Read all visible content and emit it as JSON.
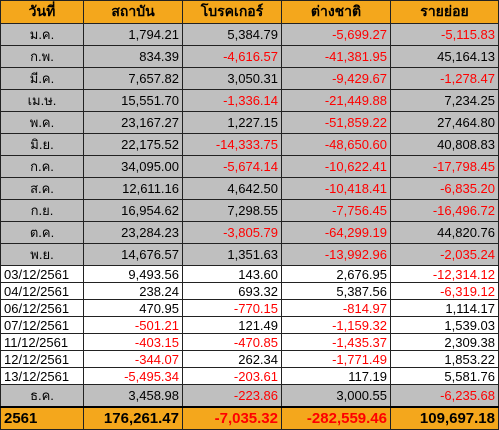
{
  "table": {
    "headers": [
      "วันที่",
      "สถาบัน",
      "โบรคเกอร์",
      "ต่างชาติ",
      "รายย่อย"
    ],
    "colors": {
      "header_bg": "#f4a71c",
      "month_row_bg": "#bfbfbf",
      "day_row_bg": "#ffffff",
      "negative_text": "#ff0000"
    },
    "rows": [
      {
        "type": "month",
        "period": "ม.ค.",
        "values": [
          "1,794.21",
          "5,384.79",
          "-5,699.27",
          "-5,115.83"
        ]
      },
      {
        "type": "month",
        "period": "ก.พ.",
        "values": [
          "834.39",
          "-4,616.57",
          "-41,381.95",
          "45,164.13"
        ]
      },
      {
        "type": "month",
        "period": "มี.ค.",
        "values": [
          "7,657.82",
          "3,050.31",
          "-9,429.67",
          "-1,278.47"
        ]
      },
      {
        "type": "month",
        "period": "เม.ษ.",
        "values": [
          "15,551.70",
          "-1,336.14",
          "-21,449.88",
          "7,234.25"
        ]
      },
      {
        "type": "month",
        "period": "พ.ค.",
        "values": [
          "23,167.27",
          "1,227.15",
          "-51,859.22",
          "27,464.80"
        ]
      },
      {
        "type": "month",
        "period": "มิ.ย.",
        "values": [
          "22,175.52",
          "-14,333.75",
          "-48,650.60",
          "40,808.83"
        ]
      },
      {
        "type": "month",
        "period": "ก.ค.",
        "values": [
          "34,095.00",
          "-5,674.14",
          "-10,622.41",
          "-17,798.45"
        ]
      },
      {
        "type": "month",
        "period": "ส.ค.",
        "values": [
          "12,611.16",
          "4,642.50",
          "-10,418.41",
          "-6,835.20"
        ]
      },
      {
        "type": "month",
        "period": "ก.ย.",
        "values": [
          "16,954.62",
          "7,298.55",
          "-7,756.45",
          "-16,496.72"
        ]
      },
      {
        "type": "month",
        "period": "ต.ค.",
        "values": [
          "23,284.23",
          "-3,805.79",
          "-64,299.19",
          "44,820.76"
        ]
      },
      {
        "type": "month",
        "period": "พ.ย.",
        "values": [
          "14,676.57",
          "1,351.63",
          "-13,992.96",
          "-2,035.24"
        ]
      },
      {
        "type": "day",
        "period": "03/12/2561",
        "values": [
          "9,493.56",
          "143.60",
          "2,676.95",
          "-12,314.12"
        ]
      },
      {
        "type": "day",
        "period": "04/12/2561",
        "values": [
          "238.24",
          "693.32",
          "5,387.56",
          "-6,319.12"
        ]
      },
      {
        "type": "day",
        "period": "06/12/2561",
        "values": [
          "470.95",
          "-770.15",
          "-814.97",
          "1,114.17"
        ]
      },
      {
        "type": "day",
        "period": "07/12/2561",
        "values": [
          "-501.21",
          "121.49",
          "-1,159.32",
          "1,539.03"
        ]
      },
      {
        "type": "day",
        "period": "11/12/2561",
        "values": [
          "-403.15",
          "-470.85",
          "-1,435.37",
          "2,309.38"
        ]
      },
      {
        "type": "day",
        "period": "12/12/2561",
        "values": [
          "-344.07",
          "262.34",
          "-1,771.49",
          "1,853.22"
        ]
      },
      {
        "type": "day",
        "period": "13/12/2561",
        "values": [
          "-5,495.34",
          "-203.61",
          "117.19",
          "5,581.76"
        ]
      },
      {
        "type": "month",
        "period": "ธ.ค.",
        "values": [
          "3,458.98",
          "-223.86",
          "3,000.55",
          "-6,235.68"
        ]
      }
    ],
    "total": {
      "period": "2561",
      "values": [
        "176,261.47",
        "-7,035.32",
        "-282,559.46",
        "109,697.18"
      ]
    }
  }
}
